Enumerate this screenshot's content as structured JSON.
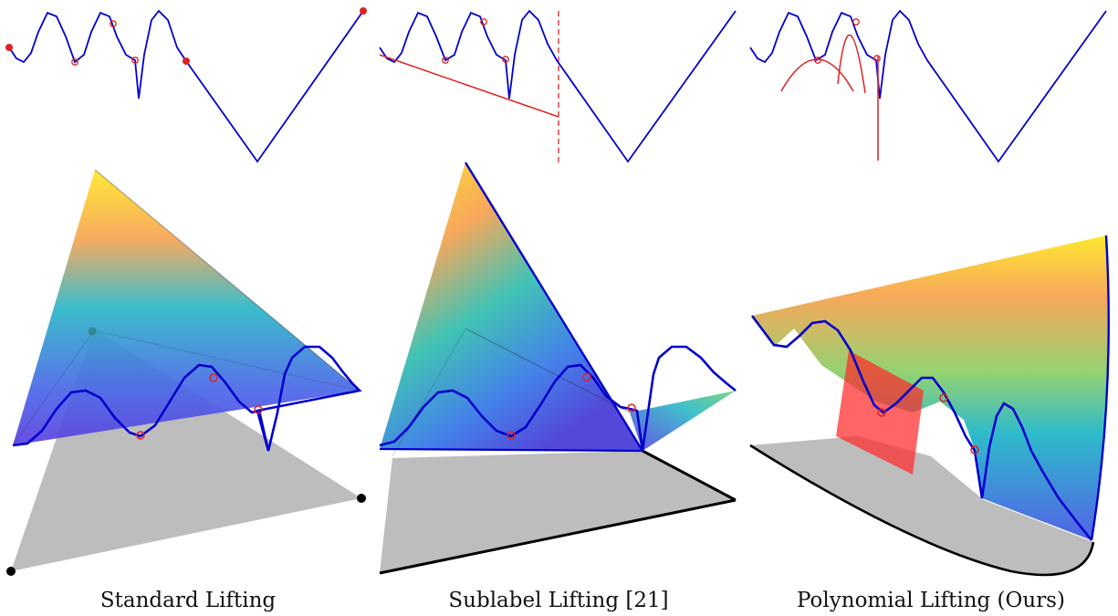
{
  "captions": {
    "standard": "Standard Lifting",
    "sublabel": "Sublabel Lifting [21]",
    "polynomial": "Polynomial Lifting (Ours)"
  },
  "colors": {
    "curve": "#0000cc",
    "marker": "#dd2222",
    "base": "#bdbdbd",
    "edge": "#000000"
  }
}
